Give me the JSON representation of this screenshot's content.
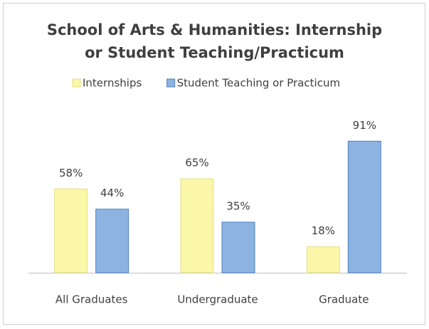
{
  "chart_data": {
    "type": "bar",
    "title": "School of Arts & Humanities: Internship or Student Teaching/Practicum",
    "categories": [
      "All Graduates",
      "Undergraduate",
      "Graduate"
    ],
    "series": [
      {
        "name": "Internships",
        "color": "#fbf7a8",
        "values": [
          58,
          65,
          18
        ],
        "value_labels": [
          "58%",
          "65%",
          "18%"
        ]
      },
      {
        "name": "Student Teaching or Practicum",
        "color": "#8db3e2",
        "values": [
          44,
          35,
          91
        ],
        "value_labels": [
          "44%",
          "35%",
          "91%"
        ]
      }
    ],
    "ylim": [
      0,
      100
    ],
    "legend": "top"
  }
}
